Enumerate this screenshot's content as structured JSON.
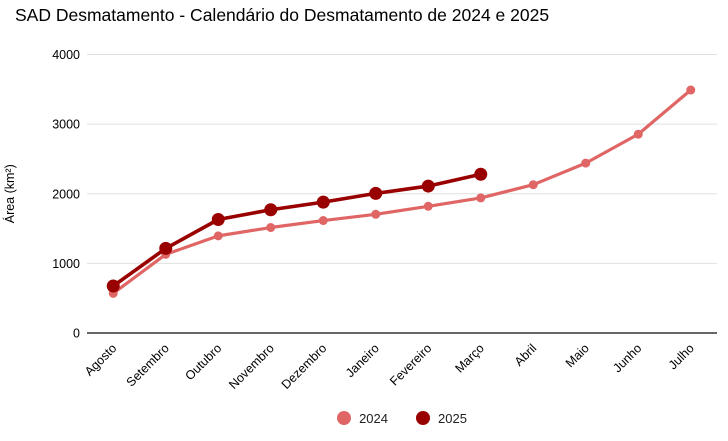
{
  "chart_data": {
    "type": "line",
    "title": "SAD Desmatamento - Calendário do Desmatamento de 2024 e 2025",
    "xlabel": "",
    "ylabel": "Área (km²)",
    "categories": [
      "Agosto",
      "Setembro",
      "Outubro",
      "Novembro",
      "Dezembro",
      "Janeiro",
      "Fevereiro",
      "Março",
      "Abril",
      "Maio",
      "Junho",
      "Julho"
    ],
    "series": [
      {
        "name": "2024",
        "color": "#e06666",
        "line_width": 3.2,
        "point_radius": 4.5,
        "values": [
          570,
          1130,
          1395,
          1515,
          1615,
          1705,
          1820,
          1940,
          2130,
          2440,
          2855,
          3490
        ]
      },
      {
        "name": "2025",
        "color": "#990000",
        "line_width": 3.6,
        "point_radius": 6.5,
        "values": [
          675,
          1215,
          1630,
          1770,
          1880,
          2005,
          2110,
          2280,
          null,
          null,
          null,
          null
        ]
      }
    ],
    "ylim": [
      0,
      4000
    ],
    "yticks": [
      0,
      1000,
      2000,
      3000,
      4000
    ],
    "grid": true,
    "legend_position": "bottom",
    "axis_line_color": "#333333",
    "gridline_color": "#e0e0e0",
    "tick_label_color": "#000000"
  }
}
